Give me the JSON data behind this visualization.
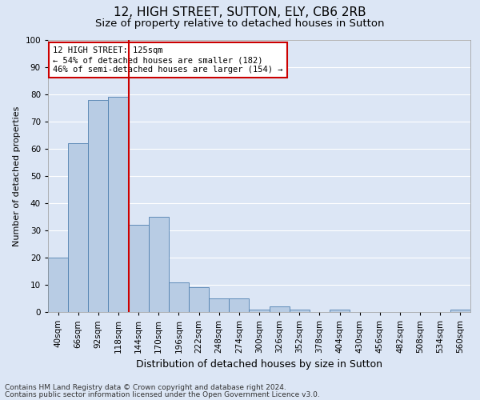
{
  "title1": "12, HIGH STREET, SUTTON, ELY, CB6 2RB",
  "title2": "Size of property relative to detached houses in Sutton",
  "xlabel": "Distribution of detached houses by size in Sutton",
  "ylabel": "Number of detached properties",
  "categories": [
    "40sqm",
    "66sqm",
    "92sqm",
    "118sqm",
    "144sqm",
    "170sqm",
    "196sqm",
    "222sqm",
    "248sqm",
    "274sqm",
    "300sqm",
    "326sqm",
    "352sqm",
    "378sqm",
    "404sqm",
    "430sqm",
    "456sqm",
    "482sqm",
    "508sqm",
    "534sqm",
    "560sqm"
  ],
  "values": [
    20,
    62,
    78,
    79,
    32,
    35,
    11,
    9,
    5,
    5,
    1,
    2,
    1,
    0,
    1,
    0,
    0,
    0,
    0,
    0,
    1
  ],
  "bar_color": "#b8cce4",
  "bar_edge_color": "#5080b0",
  "vline_x_index": 3,
  "vline_color": "#cc0000",
  "ylim": [
    0,
    100
  ],
  "yticks": [
    0,
    10,
    20,
    30,
    40,
    50,
    60,
    70,
    80,
    90,
    100
  ],
  "bg_color": "#dce6f5",
  "plot_bg_color": "#dce6f5",
  "grid_color": "#ffffff",
  "annotation_line1": "12 HIGH STREET: 125sqm",
  "annotation_line2": "← 54% of detached houses are smaller (182)",
  "annotation_line3": "46% of semi-detached houses are larger (154) →",
  "annotation_box_color": "#ffffff",
  "annotation_box_edge_color": "#cc0000",
  "footer1": "Contains HM Land Registry data © Crown copyright and database right 2024.",
  "footer2": "Contains public sector information licensed under the Open Government Licence v3.0.",
  "title1_fontsize": 11,
  "title2_fontsize": 9.5,
  "xlabel_fontsize": 9,
  "ylabel_fontsize": 8,
  "tick_fontsize": 7.5,
  "annotation_fontsize": 7.5,
  "footer_fontsize": 6.5
}
